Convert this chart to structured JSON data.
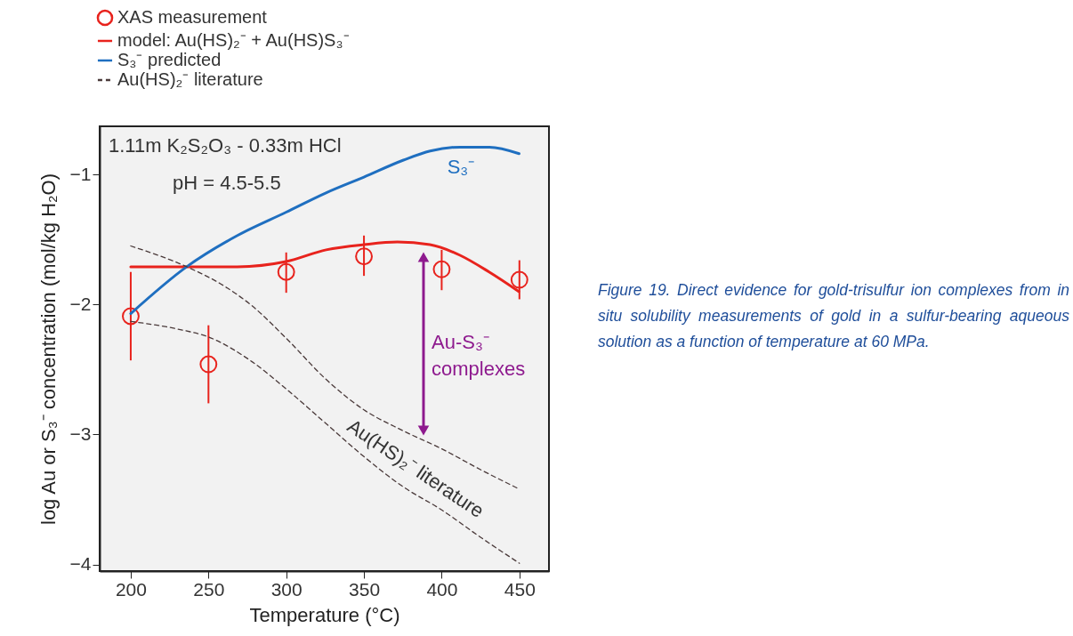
{
  "chart_data": {
    "type": "line",
    "xlabel": "Temperature (°C)",
    "ylabel": "log Au or S₃⁻ concentration (mol/kg H₂O)",
    "xlim": [
      180,
      469
    ],
    "ylim": [
      -4.05,
      -0.63
    ],
    "xticks": [
      200,
      250,
      300,
      350,
      400,
      450
    ],
    "yticks": [
      -4,
      -3,
      -2,
      -1
    ],
    "grid": false,
    "legend": "top left",
    "series": [
      {
        "name": "XAS measurement",
        "type": "scatter",
        "marker": "circle",
        "color": "#e8231d",
        "x": [
          200,
          250,
          300,
          350,
          400,
          450
        ],
        "values": [
          -2.09,
          -2.46,
          -1.75,
          -1.63,
          -1.73,
          -1.81
        ],
        "errors": [
          [
            -2.43,
            -1.75
          ],
          [
            -2.76,
            -2.16
          ],
          [
            -1.91,
            -1.6
          ],
          [
            -1.78,
            -1.47
          ],
          [
            -1.89,
            -1.58
          ],
          [
            -1.96,
            -1.66
          ]
        ]
      },
      {
        "name": "model: Au(HS)₂⁻ + Au(HS)S₃⁻",
        "line_style": "solid",
        "color": "#e8231d",
        "x": [
          200,
          236,
          268.5,
          300,
          325.7,
          350,
          371.5,
          392.4,
          411.5,
          430.5,
          449.6
        ],
        "values": [
          -1.71,
          -1.71,
          -1.71,
          -1.67,
          -1.58,
          -1.54,
          -1.52,
          -1.54,
          -1.62,
          -1.75,
          -1.9
        ]
      },
      {
        "name": "S₃⁻ predicted",
        "line_style": "solid",
        "color": "#1f6fc0",
        "x": [
          200,
          236,
          268.6,
          300,
          325.9,
          350,
          375.4,
          392.6,
          411.7,
          430.7,
          449.8
        ],
        "values": [
          -2.07,
          -1.71,
          -1.47,
          -1.29,
          -1.14,
          -1.02,
          -0.89,
          -0.82,
          -0.79,
          -0.79,
          -0.84
        ]
      },
      {
        "name": "Au(HS)₂⁻ literature",
        "line_style": "dashed",
        "color": "#4a3a3a",
        "x": [
          200,
          236,
          259,
          278,
          300,
          326,
          350,
          375,
          400,
          425,
          450
        ],
        "values": [
          -1.55,
          -1.71,
          -1.85,
          -2.01,
          -2.26,
          -2.58,
          -2.81,
          -2.97,
          -3.11,
          -3.27,
          -3.42
        ]
      },
      {
        "line_style": "dashed",
        "color": "#4a3a3a",
        "x": [
          200,
          230.5,
          250,
          278,
          300,
          326,
          350,
          375,
          400,
          425,
          450
        ],
        "values": [
          -2.13,
          -2.19,
          -2.25,
          -2.44,
          -2.65,
          -2.92,
          -3.17,
          -3.4,
          -3.58,
          -3.79,
          -3.99
        ]
      }
    ],
    "annotations": [
      "1.11m K₂S₂O₃ - 0.33m HCl",
      "pH = 4.5-5.5",
      "S₃⁻",
      "Au-S₃⁻\ncomplexes",
      "Au(HS)₂⁻ literature",
      "Figure 19. Direct evidence for gold-trisulfur ion complexes from in situ solubility measurements of gold in a sulfur-bearing aqueous solution as a function of temperature at 60 MPa."
    ]
  }
}
